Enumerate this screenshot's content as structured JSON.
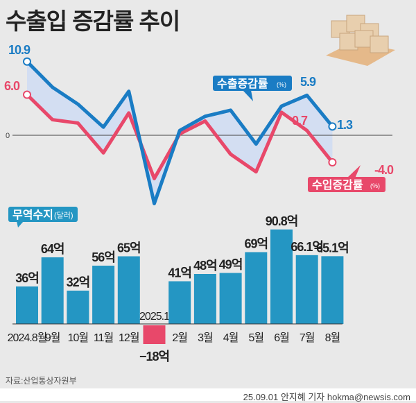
{
  "title": "수출입 증감률 추이",
  "source": "자료:산업통상자원부",
  "credit": "25.09.01 안지혜 기자 hokma@newsis.com",
  "colors": {
    "export": "#1a7cc4",
    "import": "#e8486a",
    "bar": "#2496c3",
    "bar_negative": "#e8486a",
    "fill": "#d3def2"
  },
  "chart_data": [
    {
      "type": "line",
      "zero_label": "0",
      "categories": [
        "2024.8",
        "9",
        "10",
        "11",
        "12",
        "2025.1",
        "2",
        "3",
        "4",
        "5",
        "6",
        "7",
        "8"
      ],
      "series": [
        {
          "name": "수출증감률",
          "unit": "(%)",
          "values": [
            10.9,
            7.1,
            4.6,
            1.2,
            6.5,
            -10.1,
            0.7,
            2.8,
            3.7,
            -1.3,
            4.3,
            5.9,
            1.3
          ],
          "labels": {
            "0": "10.9",
            "11": "5.9",
            "12": "1.3"
          }
        },
        {
          "name": "수입증감률",
          "unit": "(%)",
          "values": [
            6.0,
            2.3,
            1.8,
            -2.6,
            3.3,
            -6.4,
            0.2,
            2.1,
            -2.8,
            -5.4,
            3.4,
            0.7,
            -4.0
          ],
          "labels": {
            "0": "6.0",
            "11": "0.7",
            "12": "-4.0"
          }
        }
      ]
    },
    {
      "type": "bar",
      "legend": "무역수지",
      "unit": "(달러)",
      "categories": [
        "2024.8월",
        "9월",
        "10월",
        "11월",
        "12월",
        "2025.1",
        "2월",
        "3월",
        "4월",
        "5월",
        "6월",
        "7월",
        "8월"
      ],
      "values": [
        36,
        64,
        32,
        56,
        65,
        -18,
        41,
        48,
        49,
        69,
        90.8,
        66.1,
        65.1
      ],
      "labels": [
        "36억",
        "64억",
        "32억",
        "56억",
        "65억",
        "−18억",
        "41억",
        "48억",
        "49억",
        "69억",
        "90.8억",
        "66.1억",
        "65.1억"
      ]
    }
  ]
}
